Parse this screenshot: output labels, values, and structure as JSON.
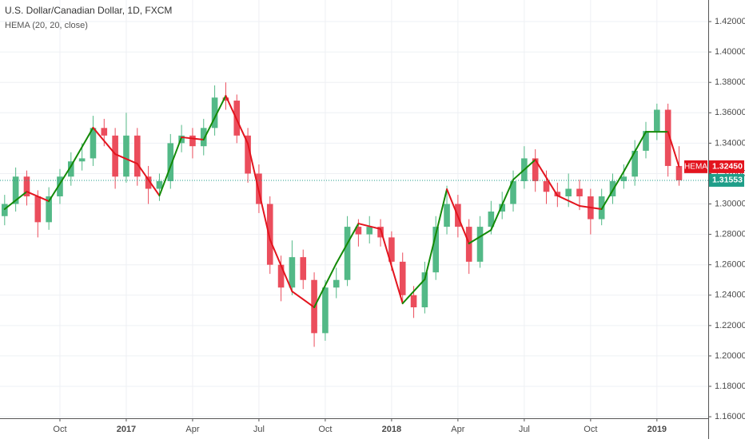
{
  "chart_data": {
    "type": "candlestick",
    "title": "U.S. Dollar/Canadian Dollar, 1D, FXCM",
    "subtitle": "HEMA (20, 20, close)",
    "xlim": [
      0.29,
      32.32
    ],
    "xticks": [
      {
        "value": 3,
        "label": "Oct"
      },
      {
        "value": 6,
        "label": "2017"
      },
      {
        "value": 9,
        "label": "Apr"
      },
      {
        "value": 12,
        "label": "Jul"
      },
      {
        "value": 15,
        "label": "Oct"
      },
      {
        "value": 18,
        "label": "2018"
      },
      {
        "value": 21,
        "label": "Apr"
      },
      {
        "value": 24,
        "label": "Jul"
      },
      {
        "value": 27,
        "label": "Oct"
      },
      {
        "value": 30,
        "label": "2019"
      }
    ],
    "ylim": [
      1.159,
      1.4342
    ],
    "yticks": [
      {
        "value": 1.16,
        "label": "1.16000"
      },
      {
        "value": 1.18,
        "label": "1.18000"
      },
      {
        "value": 1.2,
        "label": "1.20000"
      },
      {
        "value": 1.22,
        "label": "1.22000"
      },
      {
        "value": 1.24,
        "label": "1.24000"
      },
      {
        "value": 1.26,
        "label": "1.26000"
      },
      {
        "value": 1.28,
        "label": "1.28000"
      },
      {
        "value": 1.3,
        "label": "1.30000"
      },
      {
        "value": 1.32,
        "label": "1.32000"
      },
      {
        "value": 1.34,
        "label": "1.34000"
      },
      {
        "value": 1.36,
        "label": "1.36000"
      },
      {
        "value": 1.38,
        "label": "1.38000"
      },
      {
        "value": 1.4,
        "label": "1.40000"
      },
      {
        "value": 1.42,
        "label": "1.42000"
      }
    ],
    "grid": true,
    "series": [
      {
        "type": "candlestick",
        "up_color": "#53b987",
        "down_color": "#eb4d5c",
        "label_color": "#1f9e89",
        "x": [
          0.5,
          1,
          1.5,
          2,
          2.5,
          3,
          3.5,
          4,
          4.5,
          5,
          5.5,
          6,
          6.5,
          7,
          7.5,
          8,
          8.5,
          9,
          9.5,
          10,
          10.5,
          11,
          11.5,
          12,
          12.5,
          13,
          13.5,
          14,
          14.5,
          15,
          15.5,
          16,
          16.5,
          17,
          17.5,
          18,
          18.5,
          19,
          19.5,
          20,
          20.5,
          21,
          21.5,
          22,
          22.5,
          23,
          23.5,
          24,
          24.5,
          25,
          25.5,
          26,
          26.5,
          27,
          27.5,
          28,
          28.5,
          29,
          29.5,
          30,
          30.5,
          31
        ],
        "open": [
          1.292,
          1.3,
          1.318,
          1.305,
          1.288,
          1.305,
          1.318,
          1.328,
          1.33,
          1.35,
          1.345,
          1.318,
          1.345,
          1.318,
          1.31,
          1.315,
          1.34,
          1.345,
          1.338,
          1.35,
          1.37,
          1.368,
          1.345,
          1.32,
          1.3,
          1.26,
          1.245,
          1.265,
          1.25,
          1.215,
          1.245,
          1.25,
          1.285,
          1.28,
          1.285,
          1.278,
          1.262,
          1.24,
          1.232,
          1.255,
          1.285,
          1.3,
          1.285,
          1.262,
          1.285,
          1.295,
          1.3,
          1.315,
          1.33,
          1.315,
          1.308,
          1.305,
          1.31,
          1.305,
          1.29,
          1.305,
          1.315,
          1.318,
          1.335,
          1.348,
          1.362,
          1.325
        ],
        "high": [
          1.306,
          1.324,
          1.322,
          1.309,
          1.311,
          1.323,
          1.334,
          1.34,
          1.358,
          1.356,
          1.35,
          1.36,
          1.35,
          1.325,
          1.32,
          1.346,
          1.352,
          1.35,
          1.356,
          1.378,
          1.38,
          1.372,
          1.35,
          1.326,
          1.305,
          1.266,
          1.276,
          1.27,
          1.255,
          1.25,
          1.258,
          1.292,
          1.29,
          1.292,
          1.29,
          1.282,
          1.268,
          1.246,
          1.262,
          1.292,
          1.312,
          1.306,
          1.29,
          1.292,
          1.302,
          1.308,
          1.322,
          1.338,
          1.336,
          1.322,
          1.314,
          1.32,
          1.316,
          1.31,
          1.31,
          1.32,
          1.326,
          1.342,
          1.354,
          1.366,
          1.366,
          1.338
        ],
        "low": [
          1.286,
          1.295,
          1.299,
          1.278,
          1.283,
          1.3,
          1.312,
          1.322,
          1.325,
          1.338,
          1.31,
          1.314,
          1.312,
          1.3,
          1.302,
          1.31,
          1.334,
          1.33,
          1.332,
          1.345,
          1.362,
          1.34,
          1.314,
          1.294,
          1.254,
          1.236,
          1.24,
          1.244,
          1.206,
          1.21,
          1.238,
          1.246,
          1.272,
          1.274,
          1.272,
          1.256,
          1.234,
          1.225,
          1.228,
          1.25,
          1.28,
          1.278,
          1.254,
          1.258,
          1.28,
          1.29,
          1.295,
          1.31,
          1.308,
          1.3,
          1.298,
          1.298,
          1.296,
          1.28,
          1.286,
          1.3,
          1.31,
          1.312,
          1.33,
          1.342,
          1.318,
          1.312
        ],
        "close": [
          1.3,
          1.318,
          1.305,
          1.288,
          1.305,
          1.318,
          1.328,
          1.33,
          1.35,
          1.345,
          1.318,
          1.345,
          1.318,
          1.31,
          1.315,
          1.34,
          1.345,
          1.338,
          1.35,
          1.37,
          1.368,
          1.345,
          1.32,
          1.3,
          1.26,
          1.245,
          1.265,
          1.25,
          1.215,
          1.245,
          1.25,
          1.285,
          1.28,
          1.285,
          1.278,
          1.262,
          1.24,
          1.232,
          1.255,
          1.285,
          1.3,
          1.285,
          1.262,
          1.285,
          1.295,
          1.3,
          1.315,
          1.33,
          1.315,
          1.308,
          1.305,
          1.31,
          1.305,
          1.29,
          1.305,
          1.315,
          1.318,
          1.335,
          1.348,
          1.362,
          1.325,
          1.31553
        ],
        "value_labels": [
          null,
          null,
          null,
          null,
          null,
          null,
          null,
          null,
          null,
          null,
          null,
          null,
          null,
          null,
          null,
          null,
          null,
          null,
          null,
          null,
          null,
          null,
          null,
          null,
          null,
          null,
          null,
          null,
          null,
          null,
          null,
          null,
          null,
          null,
          null,
          null,
          null,
          null,
          null,
          null,
          null,
          null,
          null,
          null,
          null,
          null,
          null,
          null,
          null,
          null,
          null,
          null,
          null,
          null,
          null,
          null,
          null,
          null,
          null,
          null,
          null,
          "1.31553"
        ]
      },
      {
        "type": "line",
        "name": "HEMA",
        "up_color": "#138a07",
        "down_color": "#e3141e",
        "label_color": "#e3141e",
        "x": [
          0.5,
          1.5,
          2.5,
          3.5,
          4.5,
          5.5,
          6.5,
          7.5,
          8.5,
          9.5,
          10.5,
          11.5,
          12.5,
          13.5,
          14.5,
          15.5,
          16.5,
          17.5,
          18.5,
          19.5,
          20.5,
          21.5,
          22.5,
          23.5,
          24.5,
          25.5,
          26.5,
          27.5,
          28.5,
          29.5,
          30.5,
          31
        ],
        "values": [
          1.2966,
          1.3081,
          1.3018,
          1.3249,
          1.3502,
          1.3328,
          1.3265,
          1.3055,
          1.3439,
          1.3423,
          1.3712,
          1.3397,
          1.2766,
          1.2425,
          1.232,
          1.2609,
          1.2871,
          1.2835,
          1.2346,
          1.2504,
          1.3097,
          1.274,
          1.2829,
          1.316,
          1.3291,
          1.3055,
          1.2987,
          1.2966,
          1.3213,
          1.3475,
          1.3475,
          1.3245
        ],
        "value_labels": [
          null,
          null,
          null,
          null,
          null,
          null,
          null,
          null,
          null,
          null,
          null,
          null,
          null,
          null,
          null,
          null,
          null,
          null,
          null,
          null,
          null,
          null,
          null,
          null,
          null,
          null,
          null,
          null,
          null,
          null,
          null,
          "1.32450"
        ]
      }
    ]
  }
}
